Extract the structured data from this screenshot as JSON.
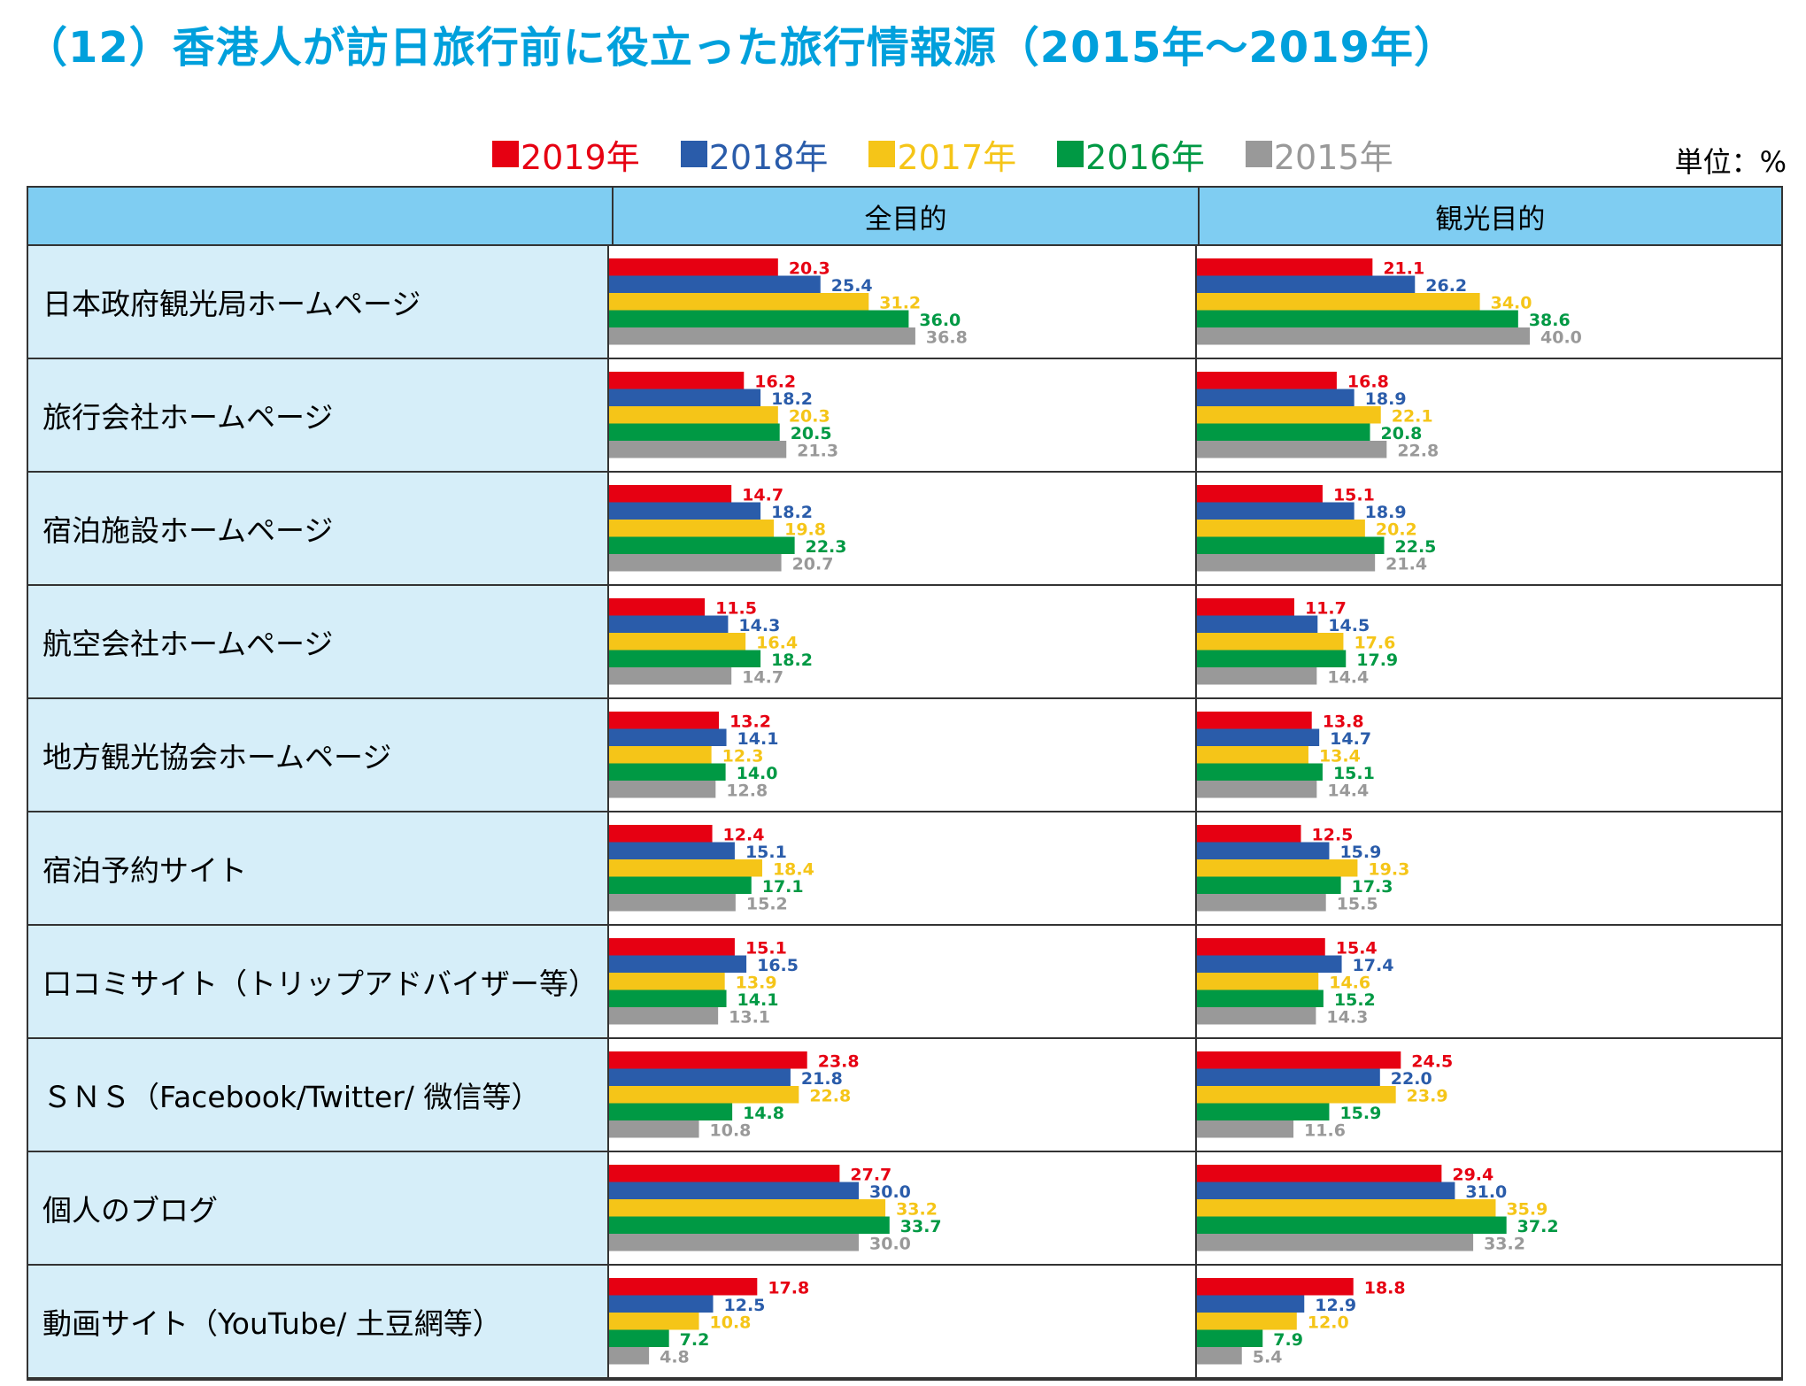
{
  "title": "（12）香港人が訪日旅行前に役立った旅行情報源（2015年～2019年）",
  "unit": "単位：%",
  "legend": [
    {
      "label": "2019年",
      "color": "#e60012"
    },
    {
      "label": "2018年",
      "color": "#2a5caa"
    },
    {
      "label": "2017年",
      "color": "#f5c518"
    },
    {
      "label": "2016年",
      "color": "#009944"
    },
    {
      "label": "2015年",
      "color": "#999999"
    }
  ],
  "column_headers": [
    "全目的",
    "観光目的"
  ],
  "chart_data": {
    "type": "bar",
    "orientation": "horizontal",
    "categories": [
      "日本政府観光局ホームページ",
      "旅行会社ホームページ",
      "宿泊施設ホームページ",
      "航空会社ホームページ",
      "地方観光協会ホームページ",
      "宿泊予約サイト",
      "口コミサイト（トリップアドバイザー等）",
      "ＳＮＳ（Facebook/Twitter/ 微信等）",
      "個人のブログ",
      "動画サイト（YouTube/ 土豆網等）"
    ],
    "panels": [
      {
        "name": "全目的",
        "series": [
          {
            "name": "2019年",
            "values": [
              20.3,
              16.2,
              14.7,
              11.5,
              13.2,
              12.4,
              15.1,
              23.8,
              27.7,
              17.8
            ]
          },
          {
            "name": "2018年",
            "values": [
              25.4,
              18.2,
              18.2,
              14.3,
              14.1,
              15.1,
              16.5,
              21.8,
              30.0,
              12.5
            ]
          },
          {
            "name": "2017年",
            "values": [
              31.2,
              20.3,
              19.8,
              16.4,
              12.3,
              18.4,
              13.9,
              22.8,
              33.2,
              10.8
            ]
          },
          {
            "name": "2016年",
            "values": [
              36.0,
              20.5,
              22.3,
              18.2,
              14.0,
              17.1,
              14.1,
              14.8,
              33.7,
              7.2
            ]
          },
          {
            "name": "2015年",
            "values": [
              36.8,
              21.3,
              20.7,
              14.7,
              12.8,
              15.2,
              13.1,
              10.8,
              30.0,
              4.8
            ]
          }
        ]
      },
      {
        "name": "観光目的",
        "series": [
          {
            "name": "2019年",
            "values": [
              21.1,
              16.8,
              15.1,
              11.7,
              13.8,
              12.5,
              15.4,
              24.5,
              29.4,
              18.8
            ]
          },
          {
            "name": "2018年",
            "values": [
              26.2,
              18.9,
              18.9,
              14.5,
              14.7,
              15.9,
              17.4,
              22.0,
              31.0,
              12.9
            ]
          },
          {
            "name": "2017年",
            "values": [
              34.0,
              22.1,
              20.2,
              17.6,
              13.4,
              19.3,
              14.6,
              23.9,
              35.9,
              12.0
            ]
          },
          {
            "name": "2016年",
            "values": [
              38.6,
              20.8,
              22.5,
              17.9,
              15.1,
              17.3,
              15.2,
              15.9,
              37.2,
              7.9
            ]
          },
          {
            "name": "2015年",
            "values": [
              40.0,
              22.8,
              21.4,
              14.4,
              14.4,
              15.5,
              14.3,
              11.6,
              33.2,
              5.4
            ]
          }
        ]
      }
    ],
    "value_format": "one-decimal",
    "xlim": [
      0,
      90
    ]
  }
}
